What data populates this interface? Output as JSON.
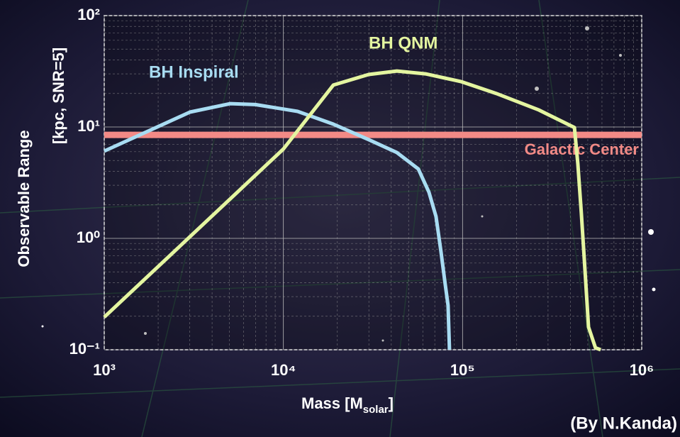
{
  "chart_data": {
    "type": "line",
    "xlabel": [
      "Mass   [M",
      "solar",
      "]"
    ],
    "ylabel": [
      "Observable Range",
      "[kpc, SNR=5]"
    ],
    "credit": "(By N.Kanda)",
    "xscale": "log",
    "yscale": "log",
    "grid": true,
    "xlim": [
      1000,
      1000000
    ],
    "ylim": [
      0.1,
      100
    ],
    "xticks": [
      {
        "value": 1000,
        "label": "10³"
      },
      {
        "value": 10000,
        "label": "10⁴"
      },
      {
        "value": 100000,
        "label": "10⁵"
      },
      {
        "value": 1000000,
        "label": "10⁶"
      }
    ],
    "yticks": [
      {
        "value": 0.1,
        "label": "10⁻¹"
      },
      {
        "value": 1,
        "label": "10⁰"
      },
      {
        "value": 10,
        "label": "10¹"
      },
      {
        "value": 100,
        "label": "10²"
      }
    ],
    "series": [
      {
        "name": "BH Inspiral",
        "color": "#a8dcf2",
        "x": [
          1000,
          3010,
          5060,
          6970,
          12000,
          19000,
          29900,
          43000,
          56600,
          64900,
          71100,
          75800,
          80000,
          83000,
          84500
        ],
        "values": [
          6.07,
          13.6,
          16.2,
          15.9,
          13.8,
          10.6,
          7.7,
          5.9,
          4.2,
          2.6,
          1.57,
          0.76,
          0.39,
          0.25,
          0.1
        ]
      },
      {
        "name": "BH QNM",
        "color": "#e4f5a0",
        "x": [
          1000,
          10000,
          19000,
          29900,
          43000,
          62100,
          97700,
          154000,
          267000,
          421000,
          440000,
          460000,
          482000,
          505000,
          552000,
          590000
        ],
        "values": [
          0.196,
          6.35,
          23.8,
          29.6,
          31.8,
          30,
          25.6,
          20,
          14.2,
          9.9,
          4.7,
          1.7,
          0.53,
          0.16,
          0.104,
          0.1
        ]
      }
    ],
    "hlines": [
      {
        "name": "Galactic Center",
        "value": 8.5,
        "color": "#f28a86"
      }
    ]
  }
}
